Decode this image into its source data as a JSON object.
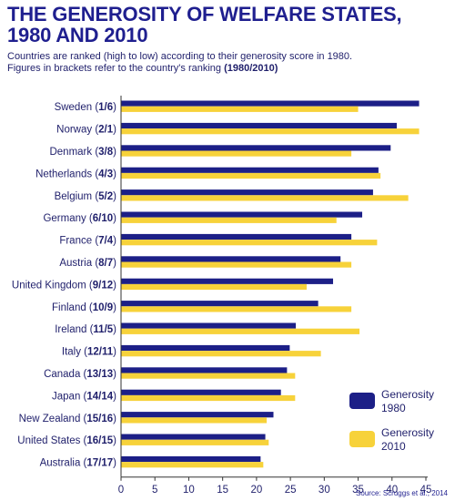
{
  "header": {
    "title_line1": "THE GENEROSITY OF WELFARE STATES,",
    "title_line2": "1980 AND 2010",
    "subtitle_line1": "Countries are ranked (high to low) according to their generosity score in 1980.",
    "subtitle_line2": "Figures in brackets refer to the country's ranking",
    "subtitle_bold": "(1980/2010)"
  },
  "source": "Source: Scruggs et al., 2014",
  "colors": {
    "series_1980": "#1c1f87",
    "series_2010": "#f7d23a",
    "text": "#1f1f6b",
    "axis": "#333333"
  },
  "chart_data": {
    "type": "bar",
    "orientation": "horizontal",
    "title": "THE GENEROSITY OF WELFARE STATES, 1980 AND 2010",
    "categories": [
      {
        "country": "Sweden",
        "rank": "1/6"
      },
      {
        "country": "Norway",
        "rank": "2/1"
      },
      {
        "country": "Denmark",
        "rank": "3/8"
      },
      {
        "country": "Netherlands",
        "rank": "4/3"
      },
      {
        "country": "Belgium",
        "rank": "5/2"
      },
      {
        "country": "Germany",
        "rank": "6/10"
      },
      {
        "country": "France",
        "rank": "7/4"
      },
      {
        "country": "Austria",
        "rank": "8/7"
      },
      {
        "country": "United Kingdom",
        "rank": "9/12"
      },
      {
        "country": "Finland",
        "rank": "10/9"
      },
      {
        "country": "Ireland",
        "rank": "11/5"
      },
      {
        "country": "Italy",
        "rank": "12/11"
      },
      {
        "country": "Canada",
        "rank": "13/13"
      },
      {
        "country": "Japan",
        "rank": "14/14"
      },
      {
        "country": "New Zealand",
        "rank": "15/16"
      },
      {
        "country": "United States",
        "rank": "16/15"
      },
      {
        "country": "Australia",
        "rank": "17/17"
      }
    ],
    "series": [
      {
        "name": "Generosity 1980",
        "legend_lines": [
          "Generosity",
          "1980"
        ],
        "color": "#1c1f87",
        "values": [
          44.0,
          40.7,
          39.8,
          38.0,
          37.2,
          35.6,
          34.0,
          32.4,
          31.3,
          29.1,
          25.8,
          24.9,
          24.5,
          23.6,
          22.5,
          21.3,
          20.6
        ]
      },
      {
        "name": "Generosity 2010",
        "legend_lines": [
          "Generosity",
          "2010"
        ],
        "color": "#f7d23a",
        "values": [
          35.0,
          44.0,
          34.0,
          38.3,
          42.4,
          31.8,
          37.8,
          34.0,
          27.4,
          34.0,
          35.2,
          29.5,
          25.7,
          25.7,
          21.5,
          21.8,
          21.0
        ]
      }
    ],
    "xlim": [
      0,
      45
    ],
    "xticks": [
      0,
      5,
      10,
      15,
      20,
      25,
      30,
      35,
      40,
      45
    ],
    "xlabel": "",
    "ylabel": "",
    "legend_position": "bottom-right",
    "grid": false
  }
}
